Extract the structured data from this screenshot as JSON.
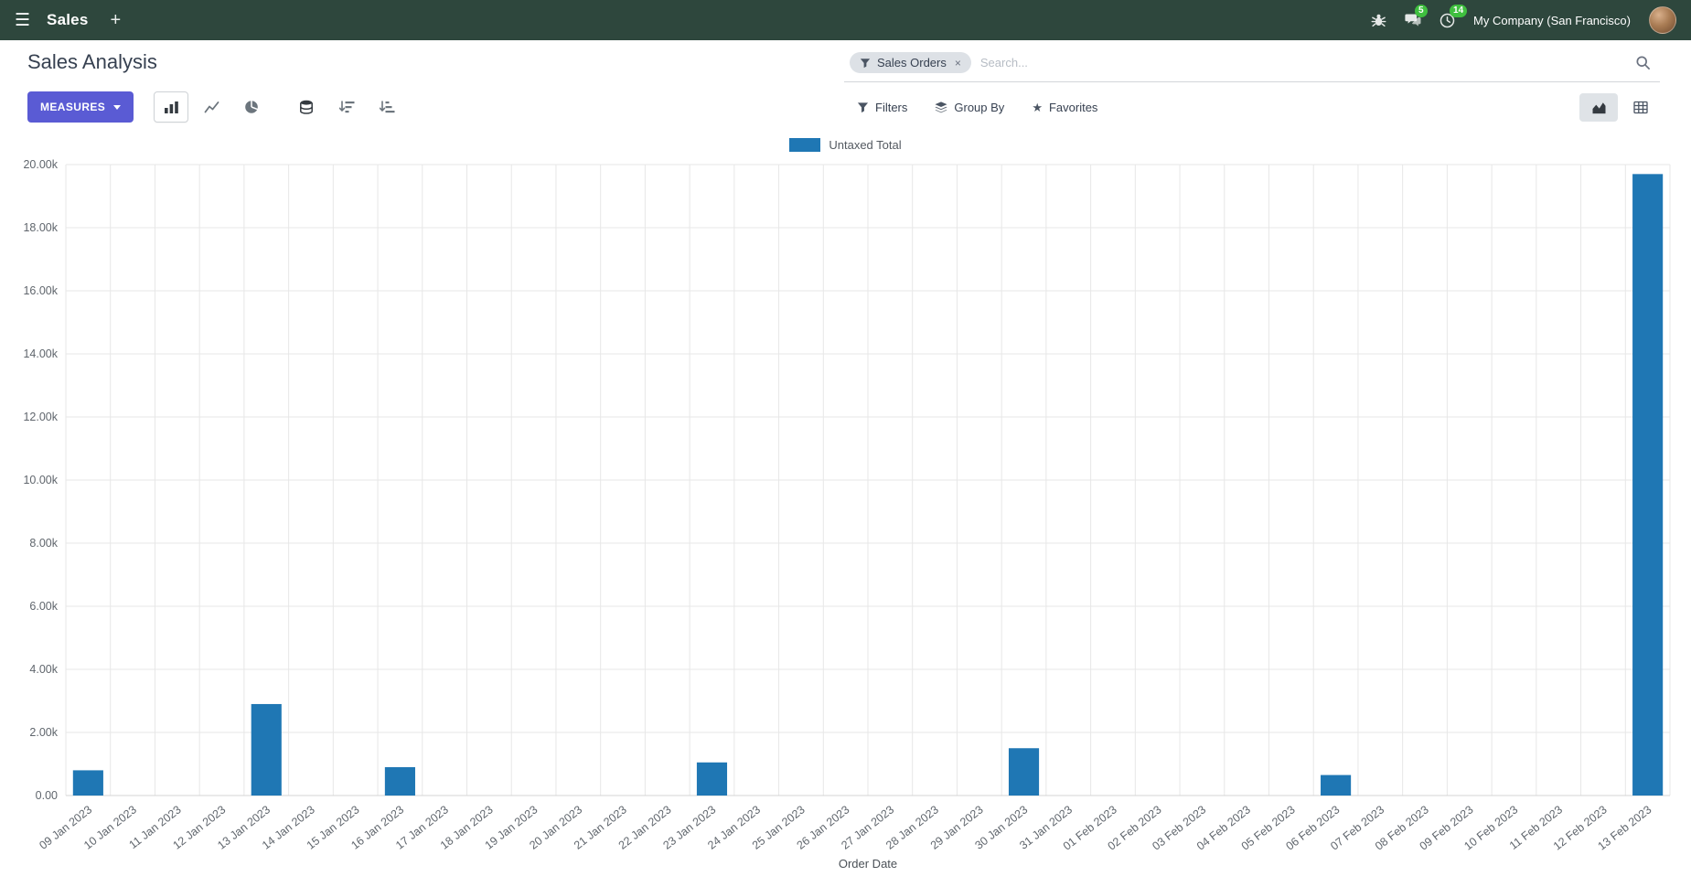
{
  "icons": {
    "menu": "☰",
    "plus": "+",
    "star": "★",
    "remove": "×"
  },
  "navbar": {
    "app_name": "Sales",
    "company": "My Company (San Francisco)",
    "messages_badge": "5",
    "activities_badge": "14"
  },
  "control_panel": {
    "title": "Sales Analysis",
    "measures_label": "MEASURES",
    "search": {
      "facet_label": "Sales Orders",
      "placeholder": "Search..."
    },
    "filters_label": "Filters",
    "group_by_label": "Group By",
    "favorites_label": "Favorites"
  },
  "chart_data": {
    "type": "bar",
    "title": "",
    "xlabel": "Order Date",
    "ylim": [
      0,
      20000
    ],
    "grid": true,
    "legend_position": "top",
    "ytick_values": [
      0,
      2000,
      4000,
      6000,
      8000,
      10000,
      12000,
      14000,
      16000,
      18000,
      20000
    ],
    "ytick_labels": [
      "0.00",
      "2.00k",
      "4.00k",
      "6.00k",
      "8.00k",
      "10.00k",
      "12.00k",
      "14.00k",
      "16.00k",
      "18.00k",
      "20.00k"
    ],
    "categories": [
      "09 Jan 2023",
      "10 Jan 2023",
      "11 Jan 2023",
      "12 Jan 2023",
      "13 Jan 2023",
      "14 Jan 2023",
      "15 Jan 2023",
      "16 Jan 2023",
      "17 Jan 2023",
      "18 Jan 2023",
      "19 Jan 2023",
      "20 Jan 2023",
      "21 Jan 2023",
      "22 Jan 2023",
      "23 Jan 2023",
      "24 Jan 2023",
      "25 Jan 2023",
      "26 Jan 2023",
      "27 Jan 2023",
      "28 Jan 2023",
      "29 Jan 2023",
      "30 Jan 2023",
      "31 Jan 2023",
      "01 Feb 2023",
      "02 Feb 2023",
      "03 Feb 2023",
      "04 Feb 2023",
      "05 Feb 2023",
      "06 Feb 2023",
      "07 Feb 2023",
      "08 Feb 2023",
      "09 Feb 2023",
      "10 Feb 2023",
      "11 Feb 2023",
      "12 Feb 2023",
      "13 Feb 2023"
    ],
    "series": [
      {
        "name": "Untaxed Total",
        "color": "#1f77b4",
        "values": [
          800,
          0,
          0,
          0,
          2900,
          0,
          0,
          900,
          0,
          0,
          0,
          0,
          0,
          0,
          1050,
          0,
          0,
          0,
          0,
          0,
          0,
          1500,
          0,
          0,
          0,
          0,
          0,
          0,
          650,
          0,
          0,
          0,
          0,
          0,
          0,
          19700
        ]
      }
    ]
  }
}
